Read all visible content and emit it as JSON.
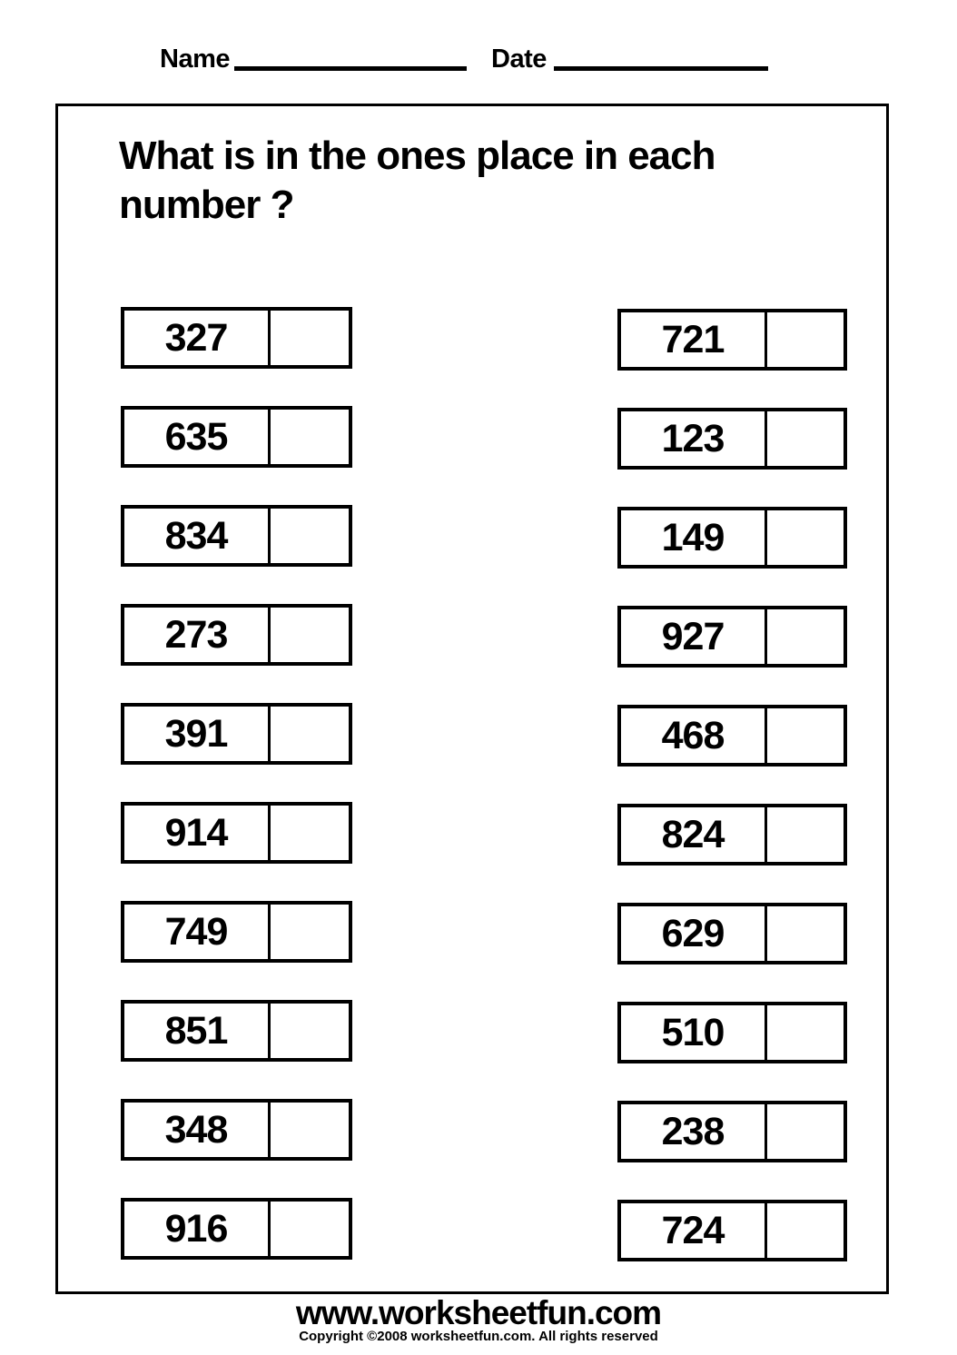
{
  "header": {
    "name_label": "Name",
    "date_label": "Date"
  },
  "title": "What is in the ones place in each\nnumber ?",
  "problems": {
    "left": [
      "327",
      "635",
      "834",
      "273",
      "391",
      "914",
      "749",
      "851",
      "348",
      "916"
    ],
    "right": [
      "721",
      "123",
      "149",
      "927",
      "468",
      "824",
      "629",
      "510",
      "238",
      "724"
    ]
  },
  "footer": {
    "url": "www.worksheetfun.com",
    "copyright": "Copyright ©2008 worksheetfun.com. All rights reserved"
  },
  "colors": {
    "ink": "#000000",
    "paper": "#ffffff"
  }
}
